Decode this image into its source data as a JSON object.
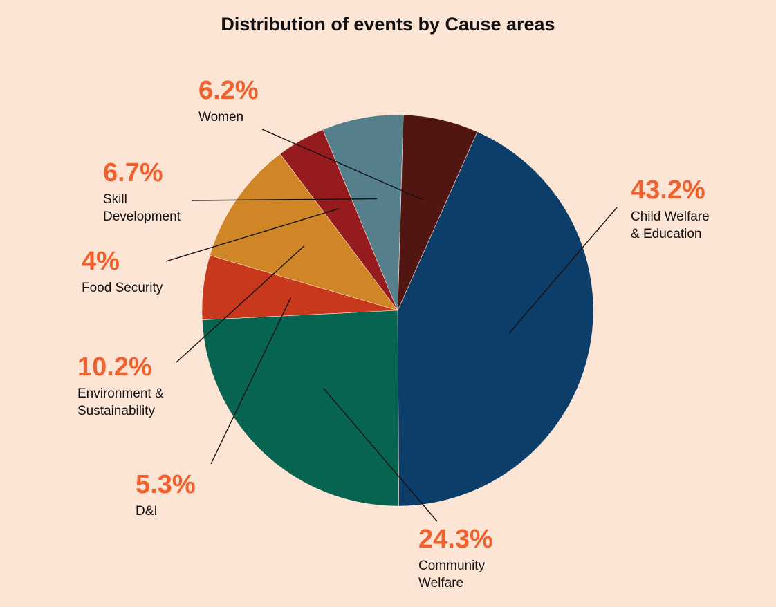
{
  "chart_data": {
    "type": "pie",
    "title": "Distribution of events by Cause areas",
    "slices": [
      {
        "name": "Child Welfare & Education",
        "name_lines": [
          "Child Welfare",
          "& Education"
        ],
        "value": 43.2,
        "label": "43.2%",
        "color": "#0d3d69"
      },
      {
        "name": "Community Welfare",
        "name_lines": [
          "Community",
          "Welfare"
        ],
        "value": 24.3,
        "label": "24.3%",
        "color": "#076450"
      },
      {
        "name": "D&I",
        "name_lines": [
          "D&I"
        ],
        "value": 5.3,
        "label": "5.3%",
        "color": "#c7381c"
      },
      {
        "name": "Environment & Sustainability",
        "name_lines": [
          "Environment &",
          "Sustainability"
        ],
        "value": 10.2,
        "label": "10.2%",
        "color": "#d08526"
      },
      {
        "name": "Food Security",
        "name_lines": [
          "Food Security"
        ],
        "value": 4,
        "label": "4%",
        "color": "#951b1e"
      },
      {
        "name": "Skill Development",
        "name_lines": [
          "Skill",
          "Development"
        ],
        "value": 6.7,
        "label": "6.7%",
        "color": "#547f8b"
      },
      {
        "name": "Women",
        "name_lines": [
          "Women"
        ],
        "value": 6.2,
        "label": "6.2%",
        "color": "#521612"
      }
    ],
    "legend": "none",
    "label_style": "outside-with-leader-lines",
    "accent_label_color": "#f2602d"
  }
}
